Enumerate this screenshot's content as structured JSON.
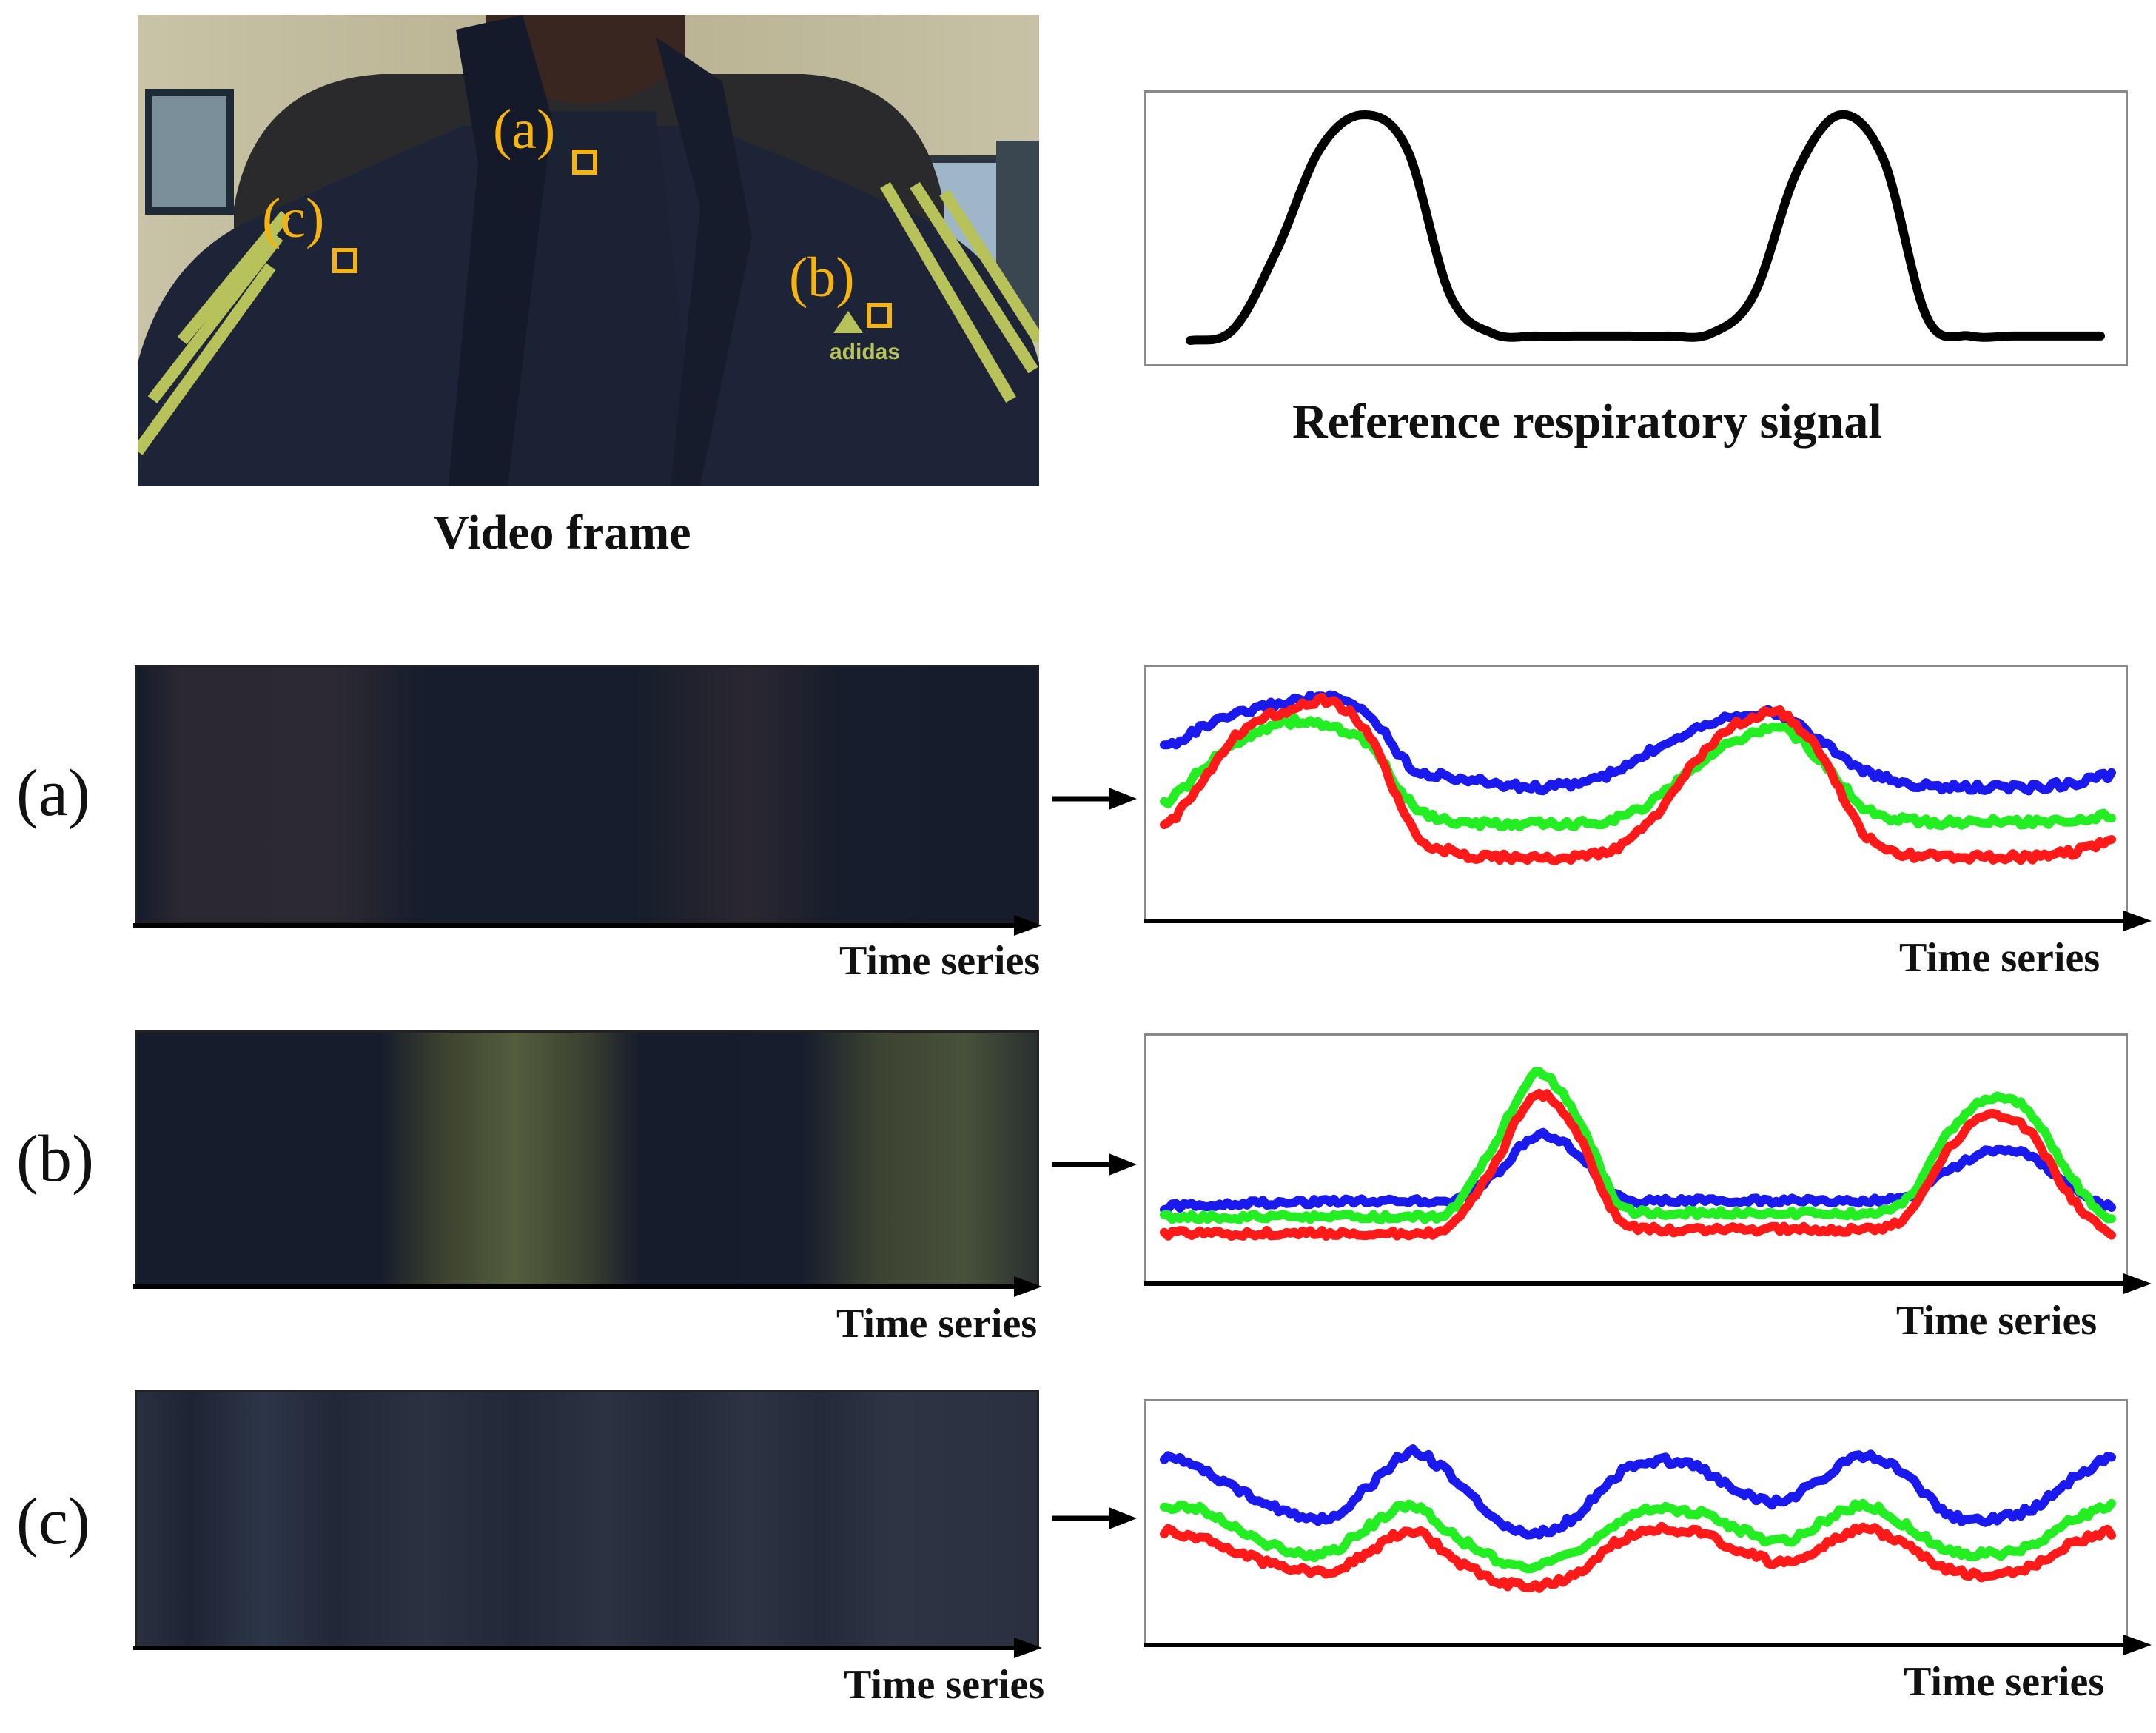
{
  "video_frame": {
    "caption": "Video frame",
    "roi_labels": [
      "(a)",
      "(b)",
      "(c)"
    ],
    "brand_text": "adidas"
  },
  "reference": {
    "caption": "Reference respiratory signal"
  },
  "rows": [
    {
      "label": "(a)",
      "strip_axis_label": "Time series",
      "plot_axis_label": "Time series"
    },
    {
      "label": "(b)",
      "strip_axis_label": "Time series",
      "plot_axis_label": "Time series"
    },
    {
      "label": "(c)",
      "strip_axis_label": "Time series",
      "plot_axis_label": "Time series"
    }
  ],
  "colors": {
    "roi": "#f6b412",
    "red": "#ff1a1a",
    "green": "#22ee22",
    "blue": "#1a1aee",
    "reference_line": "#000000"
  },
  "chart_data": [
    {
      "type": "line",
      "series": [
        {
          "color": "#000000",
          "values": [
            0.0,
            0.05,
            0.4,
            0.85,
            1.0,
            0.85,
            0.2,
            0.03,
            0.02,
            0.02,
            0.02,
            0.02,
            0.03,
            0.2,
            0.75,
            1.0,
            0.8,
            0.1,
            0.02,
            0.02,
            0.02,
            0.02
          ]
        }
      ]
    },
    {
      "type": "line",
      "series": [
        {
          "color": "#1a1aee",
          "values": [
            0.7,
            0.8,
            0.87,
            0.92,
            0.94,
            0.85,
            0.6,
            0.55,
            0.52,
            0.5,
            0.52,
            0.58,
            0.7,
            0.8,
            0.86,
            0.85,
            0.72,
            0.58,
            0.52,
            0.5,
            0.5,
            0.5,
            0.52,
            0.56
          ]
        },
        {
          "color": "#22ee22",
          "values": [
            0.42,
            0.6,
            0.75,
            0.82,
            0.8,
            0.7,
            0.42,
            0.33,
            0.32,
            0.32,
            0.32,
            0.35,
            0.45,
            0.62,
            0.74,
            0.79,
            0.62,
            0.4,
            0.34,
            0.33,
            0.33,
            0.33,
            0.34,
            0.36
          ]
        },
        {
          "color": "#ff1a1a",
          "values": [
            0.3,
            0.56,
            0.8,
            0.88,
            0.92,
            0.75,
            0.3,
            0.18,
            0.16,
            0.15,
            0.16,
            0.2,
            0.38,
            0.65,
            0.82,
            0.86,
            0.64,
            0.27,
            0.17,
            0.16,
            0.16,
            0.16,
            0.18,
            0.24
          ]
        }
      ]
    },
    {
      "type": "line",
      "series": [
        {
          "color": "#1a1aee",
          "values": [
            0.25,
            0.26,
            0.27,
            0.27,
            0.28,
            0.28,
            0.28,
            0.28,
            0.4,
            0.6,
            0.52,
            0.3,
            0.28,
            0.28,
            0.28,
            0.28,
            0.28,
            0.28,
            0.3,
            0.42,
            0.52,
            0.5,
            0.35,
            0.25
          ]
        },
        {
          "color": "#22ee22",
          "values": [
            0.2,
            0.2,
            0.2,
            0.2,
            0.2,
            0.2,
            0.2,
            0.24,
            0.55,
            0.9,
            0.7,
            0.28,
            0.22,
            0.22,
            0.22,
            0.22,
            0.22,
            0.22,
            0.28,
            0.6,
            0.78,
            0.72,
            0.4,
            0.18
          ]
        },
        {
          "color": "#ff1a1a",
          "values": [
            0.12,
            0.12,
            0.12,
            0.12,
            0.12,
            0.12,
            0.12,
            0.16,
            0.45,
            0.8,
            0.62,
            0.2,
            0.14,
            0.14,
            0.14,
            0.14,
            0.14,
            0.14,
            0.2,
            0.52,
            0.7,
            0.62,
            0.3,
            0.12
          ]
        }
      ]
    },
    {
      "type": "line",
      "series": [
        {
          "color": "#1a1aee",
          "values": [
            0.82,
            0.75,
            0.63,
            0.55,
            0.52,
            0.68,
            0.84,
            0.72,
            0.52,
            0.44,
            0.53,
            0.73,
            0.8,
            0.76,
            0.64,
            0.6,
            0.72,
            0.82,
            0.73,
            0.54,
            0.51,
            0.56,
            0.7,
            0.82
          ]
        },
        {
          "color": "#22ee22",
          "values": [
            0.58,
            0.55,
            0.44,
            0.36,
            0.35,
            0.48,
            0.58,
            0.44,
            0.32,
            0.28,
            0.35,
            0.5,
            0.56,
            0.54,
            0.46,
            0.4,
            0.5,
            0.58,
            0.48,
            0.36,
            0.34,
            0.38,
            0.5,
            0.58
          ]
        },
        {
          "color": "#ff1a1a",
          "values": [
            0.45,
            0.42,
            0.33,
            0.28,
            0.26,
            0.35,
            0.46,
            0.32,
            0.22,
            0.18,
            0.25,
            0.4,
            0.46,
            0.44,
            0.36,
            0.3,
            0.38,
            0.47,
            0.38,
            0.27,
            0.24,
            0.28,
            0.39,
            0.45
          ]
        }
      ]
    }
  ]
}
